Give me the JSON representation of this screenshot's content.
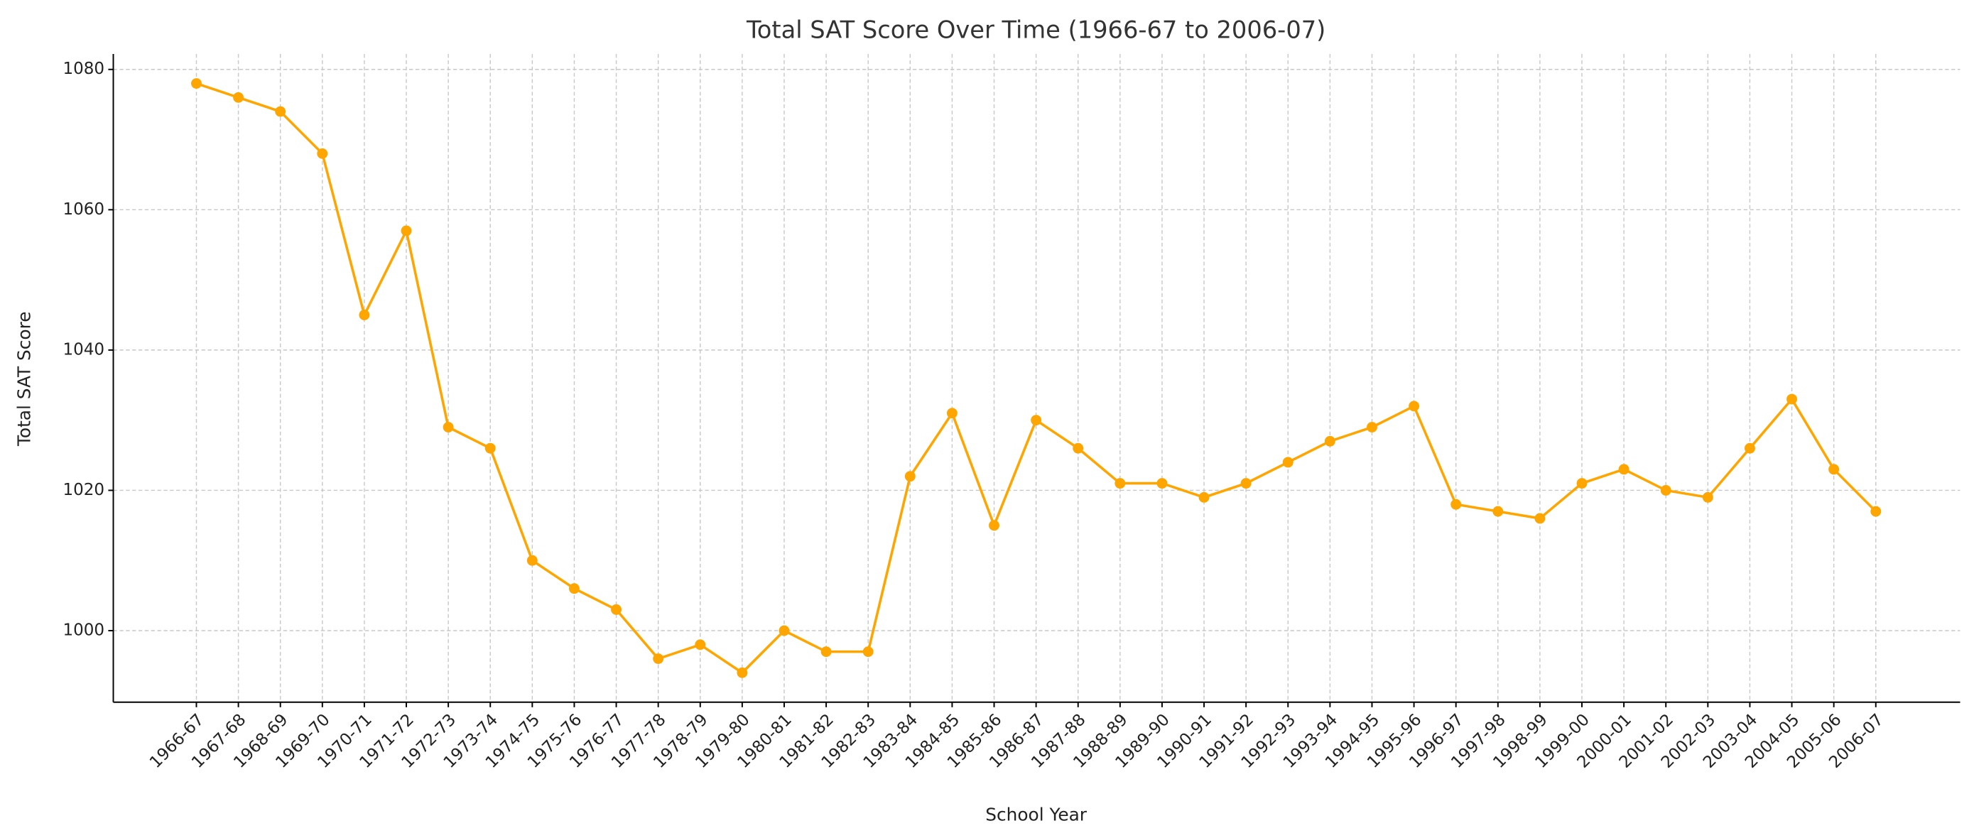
{
  "chart_data": {
    "type": "line",
    "title": "Total SAT Score Over Time (1966-67 to 2006-07)",
    "xlabel": "School Year",
    "ylabel": "Total SAT Score",
    "categories": [
      "1966-67",
      "1967-68",
      "1968-69",
      "1969-70",
      "1970-71",
      "1971-72",
      "1972-73",
      "1973-74",
      "1974-75",
      "1975-76",
      "1976-77",
      "1977-78",
      "1978-79",
      "1979-80",
      "1980-81",
      "1981-82",
      "1982-83",
      "1983-84",
      "1984-85",
      "1985-86",
      "1986-87",
      "1987-88",
      "1988-89",
      "1989-90",
      "1990-91",
      "1991-92",
      "1992-93",
      "1993-94",
      "1994-95",
      "1995-96",
      "1996-97",
      "1997-98",
      "1998-99",
      "1999-00",
      "2000-01",
      "2001-02",
      "2002-03",
      "2003-04",
      "2004-05",
      "2005-06",
      "2006-07"
    ],
    "values": [
      1078,
      1076,
      1074,
      1068,
      1045,
      1057,
      1029,
      1026,
      1010,
      1006,
      1003,
      996,
      998,
      994,
      1000,
      997,
      997,
      1022,
      1031,
      1015,
      1030,
      1026,
      1021,
      1021,
      1019,
      1021,
      1024,
      1027,
      1029,
      1032,
      1018,
      1017,
      1016,
      1021,
      1023,
      1020,
      1019,
      1026,
      1033,
      1023,
      1017
    ],
    "color": "#ffa500",
    "ylim": [
      989.8,
      1082.2
    ],
    "yticks": [
      1000,
      1020,
      1040,
      1060,
      1080
    ],
    "grid": true
  }
}
